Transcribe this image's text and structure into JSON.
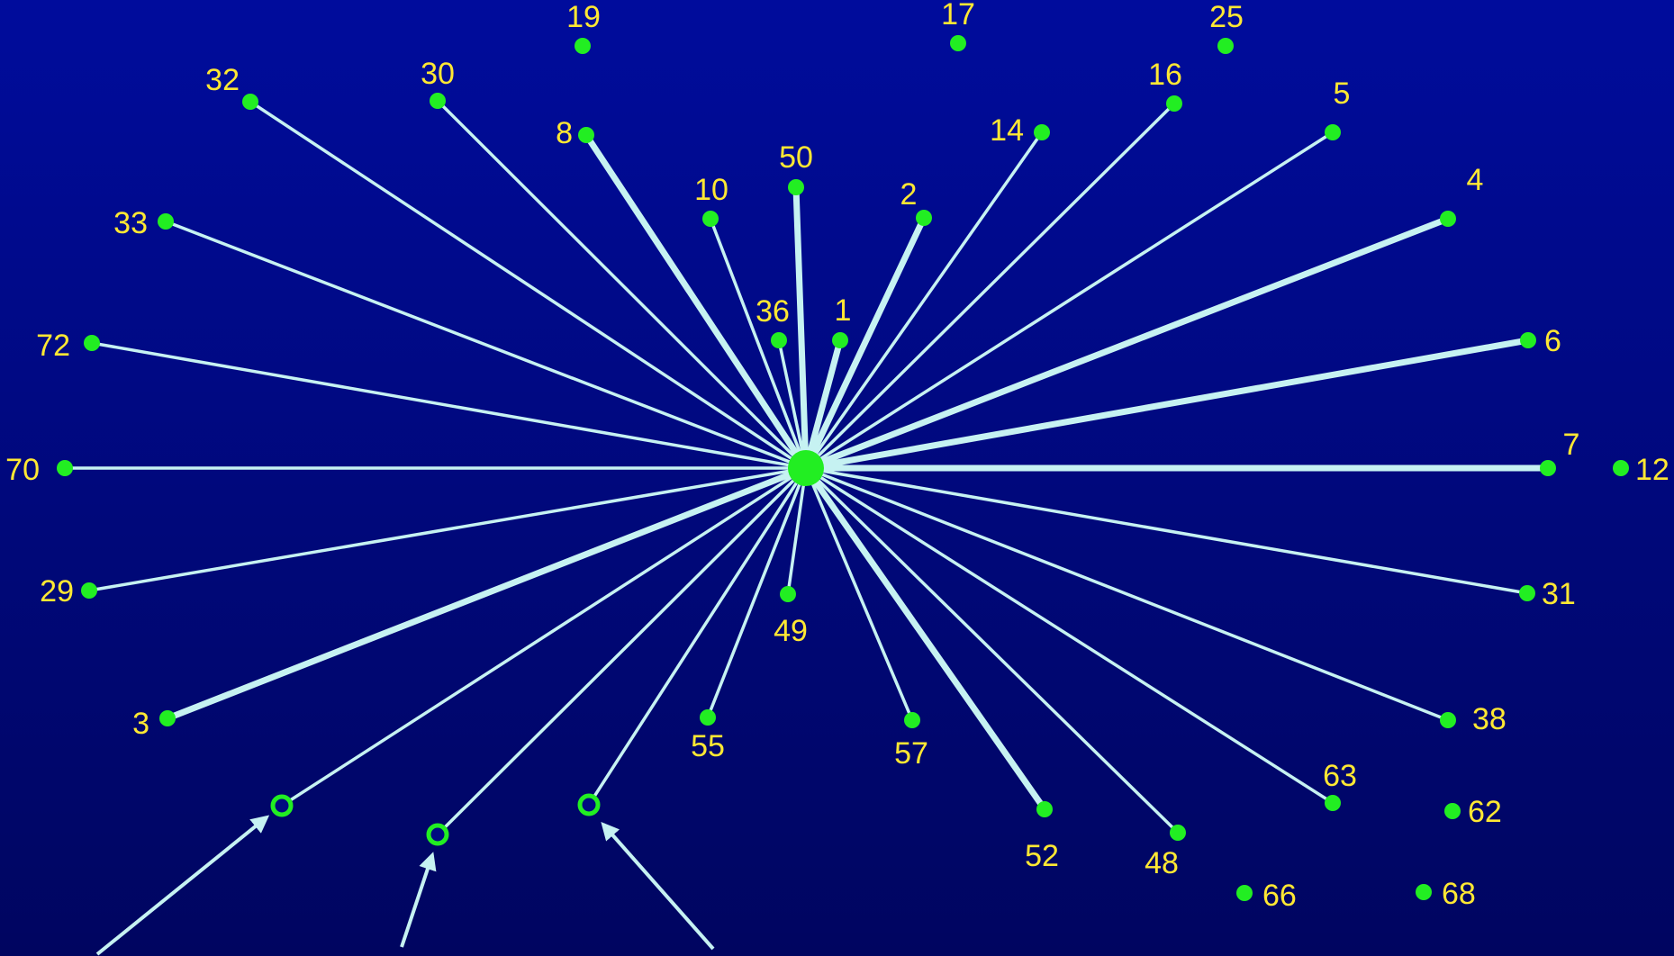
{
  "colors": {
    "background_top": "#000c9c",
    "background_bottom": "#000560",
    "edge": "#c6f2f2",
    "node": "#22ee22",
    "label": "#ffe833"
  },
  "hub": {
    "id": "hub"
  },
  "nodes": [
    {
      "id": "19",
      "label": "19",
      "connected": false
    },
    {
      "id": "17",
      "label": "17",
      "connected": false
    },
    {
      "id": "25",
      "label": "25",
      "connected": false
    },
    {
      "id": "32",
      "label": "32",
      "connected": true,
      "weight": "normal"
    },
    {
      "id": "30",
      "label": "30",
      "connected": true,
      "weight": "normal"
    },
    {
      "id": "8",
      "label": "8",
      "connected": true,
      "weight": "heavy"
    },
    {
      "id": "16",
      "label": "16",
      "connected": true,
      "weight": "normal"
    },
    {
      "id": "14",
      "label": "14",
      "connected": true,
      "weight": "normal"
    },
    {
      "id": "5",
      "label": "5",
      "connected": true,
      "weight": "normal"
    },
    {
      "id": "50",
      "label": "50",
      "connected": true,
      "weight": "heavy"
    },
    {
      "id": "10",
      "label": "10",
      "connected": true,
      "weight": "normal"
    },
    {
      "id": "2",
      "label": "2",
      "connected": true,
      "weight": "heavy"
    },
    {
      "id": "4",
      "label": "4",
      "connected": true,
      "weight": "heavy"
    },
    {
      "id": "33",
      "label": "33",
      "connected": true,
      "weight": "normal"
    },
    {
      "id": "36",
      "label": "36",
      "connected": true,
      "weight": "normal"
    },
    {
      "id": "1",
      "label": "1",
      "connected": true,
      "weight": "heavy"
    },
    {
      "id": "72",
      "label": "72",
      "connected": true,
      "weight": "normal"
    },
    {
      "id": "6",
      "label": "6",
      "connected": true,
      "weight": "heavy"
    },
    {
      "id": "70",
      "label": "70",
      "connected": true,
      "weight": "normal"
    },
    {
      "id": "7",
      "label": "7",
      "connected": true,
      "weight": "heavy"
    },
    {
      "id": "12",
      "label": "12",
      "connected": false
    },
    {
      "id": "29",
      "label": "29",
      "connected": true,
      "weight": "normal"
    },
    {
      "id": "31",
      "label": "31",
      "connected": true,
      "weight": "normal"
    },
    {
      "id": "49",
      "label": "49",
      "connected": true,
      "weight": "normal"
    },
    {
      "id": "3",
      "label": "3",
      "connected": true,
      "weight": "heavy"
    },
    {
      "id": "38",
      "label": "38",
      "connected": true,
      "weight": "normal"
    },
    {
      "id": "55",
      "label": "55",
      "connected": true,
      "weight": "normal"
    },
    {
      "id": "57",
      "label": "57",
      "connected": true,
      "weight": "normal"
    },
    {
      "id": "63",
      "label": "63",
      "connected": true,
      "weight": "normal"
    },
    {
      "id": "62",
      "label": "62",
      "connected": false
    },
    {
      "id": "52",
      "label": "52",
      "connected": true,
      "weight": "heavy"
    },
    {
      "id": "48",
      "label": "48",
      "connected": true,
      "weight": "normal"
    },
    {
      "id": "66",
      "label": "66",
      "connected": false
    },
    {
      "id": "68",
      "label": "68",
      "connected": false
    },
    {
      "id": "u1",
      "label": "",
      "connected": true,
      "weight": "normal",
      "hollow": true,
      "arrow": true
    },
    {
      "id": "u2",
      "label": "",
      "connected": true,
      "weight": "normal",
      "hollow": true,
      "arrow": true
    },
    {
      "id": "u3",
      "label": "",
      "connected": true,
      "weight": "normal",
      "hollow": true,
      "arrow": true
    }
  ]
}
